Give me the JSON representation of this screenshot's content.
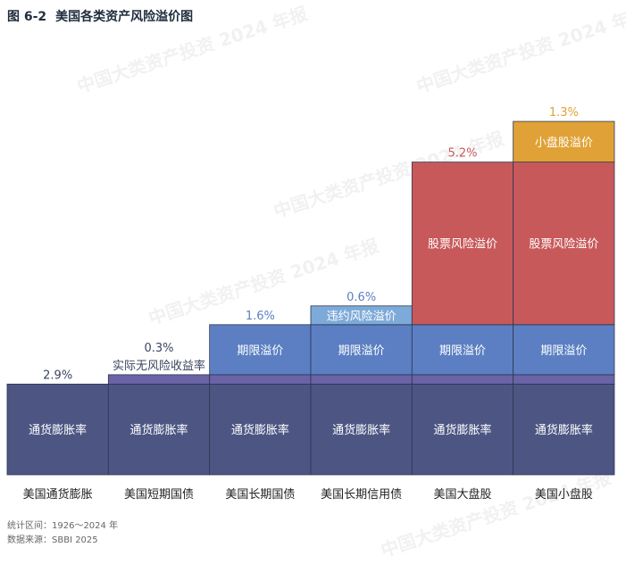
{
  "figure": {
    "number": "图 6-2",
    "title": "美国各类资产风险溢价图"
  },
  "chart_data": {
    "type": "bar",
    "stacked": true,
    "categories": [
      "美国通货膨胀",
      "美国短期国债",
      "美国长期国债",
      "美国长期信用债",
      "美国大盘股",
      "美国小盘股"
    ],
    "series": [
      {
        "name": "通货膨胀率",
        "values": [
          2.9,
          2.9,
          2.9,
          2.9,
          2.9,
          2.9
        ],
        "color": "#4d5683",
        "show_in_bar": [
          true,
          true,
          true,
          true,
          true,
          true
        ]
      },
      {
        "name": "实际无风险收益率",
        "values": [
          0,
          0.3,
          0.3,
          0.3,
          0.3,
          0.3
        ],
        "color": "#6a63a6",
        "show_in_bar": [
          false,
          false,
          false,
          false,
          false,
          false
        ]
      },
      {
        "name": "期限溢价",
        "values": [
          0,
          0,
          1.6,
          1.6,
          1.6,
          1.6
        ],
        "color": "#5b7fc2",
        "show_in_bar": [
          false,
          false,
          true,
          true,
          true,
          true
        ]
      },
      {
        "name": "违约风险溢价",
        "values": [
          0,
          0,
          0,
          0.6,
          0,
          0
        ],
        "color": "#7daad8",
        "show_in_bar": [
          false,
          false,
          false,
          true,
          false,
          false
        ]
      },
      {
        "name": "股票风险溢价",
        "values": [
          0,
          0,
          0,
          0,
          5.2,
          5.2
        ],
        "color": "#c8595a",
        "show_in_bar": [
          false,
          false,
          false,
          false,
          true,
          true
        ]
      },
      {
        "name": "小盘股溢价",
        "values": [
          0,
          0,
          0,
          0,
          0,
          1.3
        ],
        "color": "#e0a236",
        "show_in_bar": [
          false,
          false,
          false,
          false,
          false,
          true
        ]
      }
    ],
    "top_labels": [
      {
        "category_index": 0,
        "text": "2.9%",
        "color": "#3a4560"
      },
      {
        "category_index": 1,
        "text": "0.3%",
        "color": "#3a4560"
      },
      {
        "category_index": 1,
        "text": "实际无风险收益率",
        "color": "#3a4560"
      },
      {
        "category_index": 2,
        "text": "1.6%",
        "color": "#5b7fc2"
      },
      {
        "category_index": 3,
        "text": "0.6%",
        "color": "#5b7fc2"
      },
      {
        "category_index": 4,
        "text": "5.2%",
        "color": "#c8595a"
      },
      {
        "category_index": 5,
        "text": "1.3%",
        "color": "#e0a236"
      }
    ],
    "ylim": [
      0,
      12
    ],
    "grid": false,
    "legend": "none"
  },
  "footer": {
    "period": "统计区间：1926～2024 年",
    "source": "数据来源：SBBI 2025"
  },
  "watermark": "中国大类资产投资 2024 年报"
}
